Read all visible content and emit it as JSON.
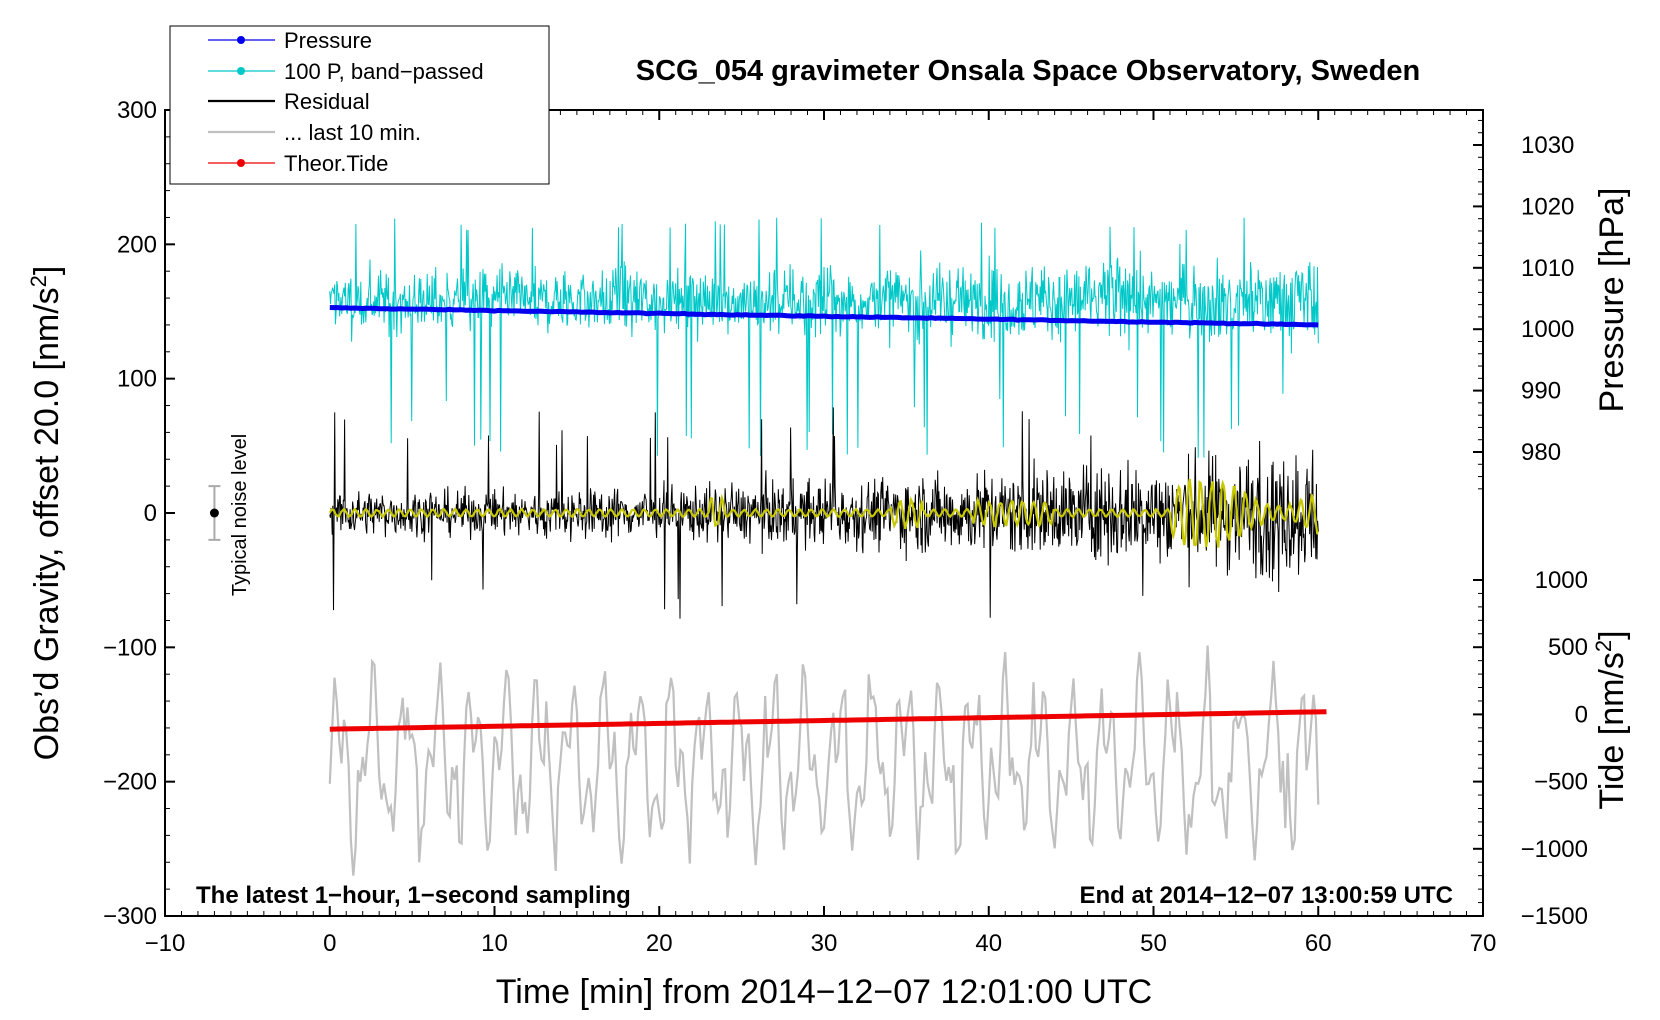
{
  "chart_data": {
    "type": "line",
    "title": "SCG_054 gravimeter Onsala Space Observatory, Sweden",
    "xlabel": "Time [min] from 2014−12−07 12:01:00 UTC",
    "ylabel_left": "Obs’d Gravity, offset 20.0 [nm/s",
    "ylabel_left_sup": "2",
    "ylabel_left_end": "]",
    "ylabel_right_pressure": "Pressure [hPa]",
    "ylabel_right_tide": "Tide [nm/s",
    "ylabel_right_tide_sup": "2",
    "ylabel_right_tide_end": "]",
    "xlim": [
      -10,
      70
    ],
    "ylim": [
      -300,
      300
    ],
    "pressure_axis_range": [
      973,
      1035
    ],
    "tide_axis_range": [
      -1500,
      1500
    ],
    "x_ticks": [
      -10,
      0,
      10,
      20,
      30,
      40,
      50,
      60,
      70
    ],
    "x_tick_labels": [
      "−10",
      "0",
      "10",
      "20",
      "30",
      "40",
      "50",
      "60",
      "70"
    ],
    "y_ticks": [
      -300,
      -200,
      -100,
      0,
      100,
      200,
      300
    ],
    "y_tick_labels": [
      "−300",
      "−200",
      "−100",
      "0",
      "100",
      "200",
      "300"
    ],
    "pressure_ticks": [
      980,
      990,
      1000,
      1010,
      1020,
      1030
    ],
    "pressure_tick_labels": [
      "980",
      "990",
      "1000",
      "1010",
      "1020",
      "1030"
    ],
    "tide_ticks": [
      -1500,
      -1000,
      -500,
      0,
      500,
      1000
    ],
    "tide_tick_labels": [
      "−1500",
      "−1000",
      "−500",
      "0",
      "500",
      "1000"
    ],
    "annotation_left": "The latest 1−hour, 1−second sampling",
    "annotation_right": "End at 2014−12−07 13:00:59 UTC",
    "noise_label": "Typical noise level",
    "noise_level": {
      "x": -7,
      "center": 0,
      "halfwidth": 20
    },
    "legend": [
      {
        "label": "Pressure",
        "color": "#0000ee",
        "marker": true
      },
      {
        "label": "100 P, band−passed",
        "color": "#00c8c8",
        "marker": true
      },
      {
        "label": "Residual",
        "color": "#000000",
        "marker": false
      },
      {
        "label": "... last 10 min.",
        "color": "#c0c0c0",
        "marker": false
      },
      {
        "label": "Theor.Tide",
        "color": "#ee0000",
        "marker": true
      }
    ],
    "series": [
      {
        "name": "Pressure",
        "color": "#0000ee",
        "x_range": [
          0,
          60
        ],
        "start": 1003.5,
        "end": 1000.7,
        "units": "hPa"
      },
      {
        "name": "100 P, band−passed",
        "color": "#00c8c8",
        "x_range": [
          0,
          60
        ],
        "mean": 150,
        "amplitude_min": 40,
        "amplitude_max": 60,
        "units": "nm/s2"
      },
      {
        "name": "Residual",
        "color": "#000000",
        "x_range": [
          0,
          60
        ],
        "mean": 0,
        "amplitude_min": 25,
        "amplitude_max": 75,
        "units": "nm/s2"
      },
      {
        "name": "... last 10 min.",
        "color": "#c0c0c0",
        "x_range": [
          0,
          60
        ],
        "time_span_min": 10,
        "mean": -185,
        "amplitude": 90,
        "units": "nm/s2"
      },
      {
        "name": "Theor.Tide",
        "color": "#ee0000",
        "x_range": [
          0,
          60.5
        ],
        "start": -110,
        "end": 20,
        "units": "nm/s2"
      },
      {
        "name": "Residual (smoothed)",
        "color": "#c8c800",
        "x_range": [
          0,
          60
        ],
        "mean": 0,
        "amplitude_min": 3,
        "amplitude_max": 30,
        "units": "nm/s2"
      }
    ]
  }
}
